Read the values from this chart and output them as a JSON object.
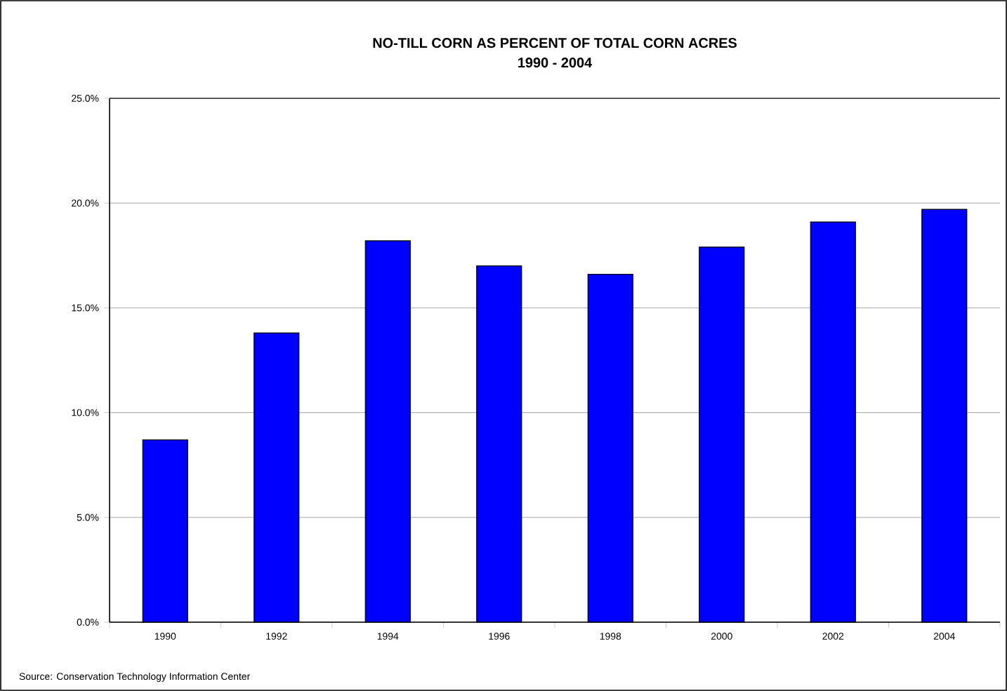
{
  "chart_data": {
    "type": "bar",
    "title": "NO-TILL CORN AS PERCENT OF TOTAL CORN ACRES",
    "subtitle": "1990 - 2004",
    "categories": [
      "1990",
      "1992",
      "1994",
      "1996",
      "1998",
      "2000",
      "2002",
      "2004"
    ],
    "values": [
      8.7,
      13.8,
      18.2,
      17.0,
      16.6,
      17.9,
      19.1,
      19.7
    ],
    "color": "#0000ff",
    "ylim": [
      0,
      25
    ],
    "yticks": [
      {
        "value": 0,
        "label": "0.0%"
      },
      {
        "value": 5,
        "label": "5.0%"
      },
      {
        "value": 10,
        "label": "10.0%"
      },
      {
        "value": 15,
        "label": "15.0%"
      },
      {
        "value": 20,
        "label": "20.0%"
      },
      {
        "value": 25,
        "label": "25.0%"
      }
    ],
    "grid": "y",
    "annotations": [
      "Source: Conservation Technology Information Center"
    ]
  }
}
